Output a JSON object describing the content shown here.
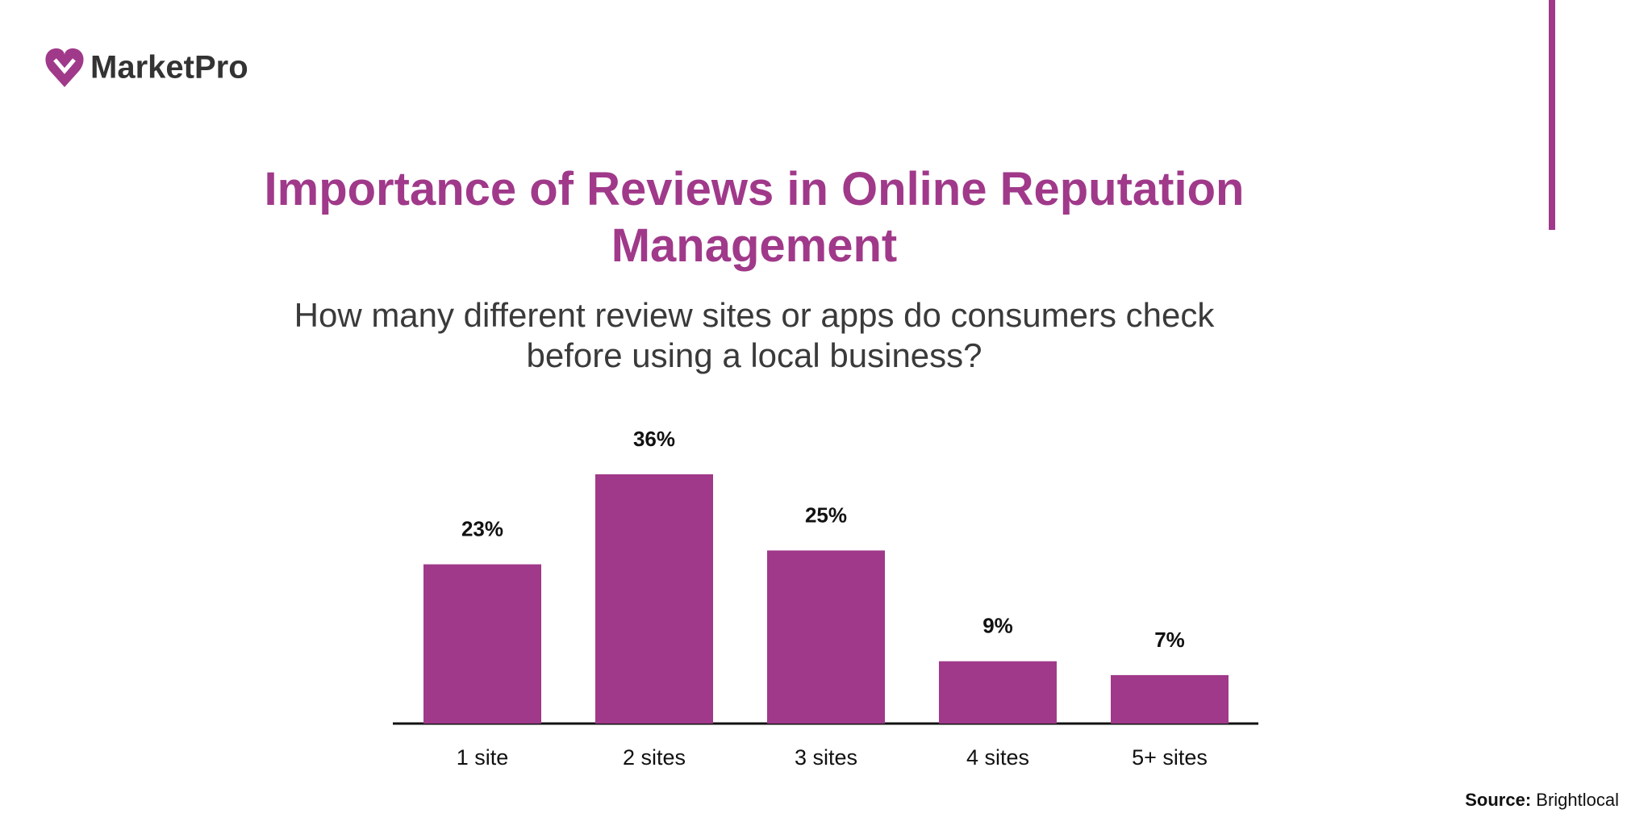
{
  "brand": "MarketPro",
  "chart_data": {
    "type": "bar",
    "title": "Importance of Reviews in Online Reputation Management",
    "subtitle": "How many different review sites or apps do consumers check before using a local business?",
    "categories": [
      "1 site",
      "2 sites",
      "3 sites",
      "4 sites",
      "5+ sites"
    ],
    "values": [
      23,
      36,
      25,
      9,
      7
    ],
    "value_labels": [
      "23%",
      "36%",
      "25%",
      "9%",
      "7%"
    ],
    "color": "#a0398a"
  },
  "source": {
    "label": "Source:",
    "text": "Brightlocal"
  }
}
